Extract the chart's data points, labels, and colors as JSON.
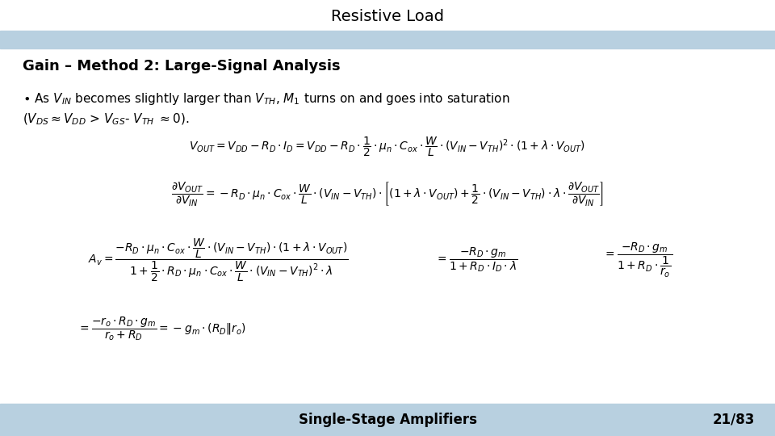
{
  "title": "Resistive Load",
  "title_fontsize": 14,
  "header_bar_color": "#b8d0e0",
  "footer_bar_color": "#b8d0e0",
  "bg_color": "#ffffff",
  "heading": "Gain – Method 2: Large-Signal Analysis",
  "heading_fontsize": 13,
  "footer_left": "Single-Stage Amplifiers",
  "footer_right": "21/83",
  "footer_fontsize": 12
}
